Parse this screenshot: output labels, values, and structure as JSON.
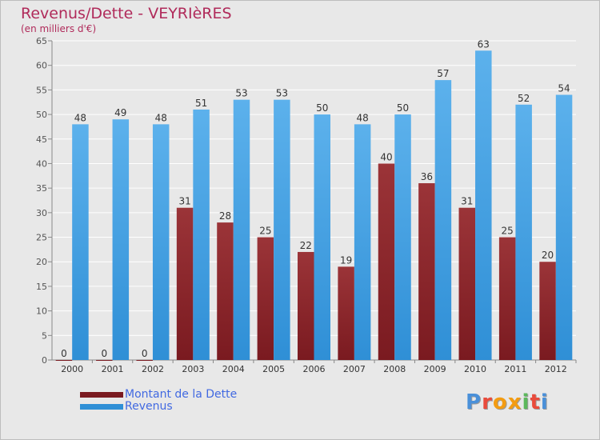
{
  "title": "Revenus/Dette - VEYRIèRES",
  "subtitle": "(en milliers d'€)",
  "logo_text": "Proxiti",
  "logo_colors": [
    "#4a90d9",
    "#e94b3c",
    "#f39c12",
    "#f39c12",
    "#5cb85c",
    "#e94b3c",
    "#4a90d9"
  ],
  "colors": {
    "dette": "#7a1a20",
    "revenus": "#2f8fd6",
    "grid": "#ffffff",
    "background": "#e8e8e8",
    "text": "#555555"
  },
  "chart_data": {
    "type": "bar",
    "categories": [
      "2000",
      "2001",
      "2002",
      "2003",
      "2004",
      "2005",
      "2006",
      "2007",
      "2008",
      "2009",
      "2010",
      "2011",
      "2012"
    ],
    "series": [
      {
        "name": "Montant de la Dette",
        "values": [
          0,
          0,
          0,
          31,
          28,
          25,
          22,
          19,
          40,
          36,
          31,
          25,
          20
        ]
      },
      {
        "name": "Revenus",
        "values": [
          48,
          49,
          48,
          51,
          53,
          53,
          50,
          48,
          50,
          57,
          63,
          52,
          54
        ]
      }
    ],
    "ylim": [
      0,
      65
    ],
    "yticks": [
      0,
      5,
      10,
      15,
      20,
      25,
      30,
      35,
      40,
      45,
      50,
      55,
      60,
      65
    ],
    "grid": true,
    "legend_position": "bottom-left"
  }
}
